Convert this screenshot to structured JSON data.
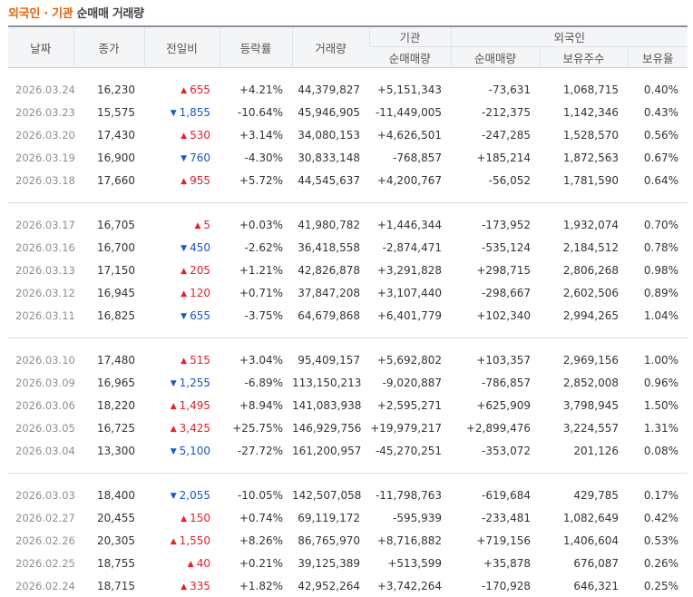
{
  "title": {
    "part1": "외국인 · 기관",
    "part2": "순매매 거래량"
  },
  "headers": {
    "date": "날짜",
    "close": "종가",
    "change": "전일비",
    "rate": "등락률",
    "volume": "거래량",
    "inst": "기관",
    "foreign": "외국인",
    "inst_net": "순매매량",
    "foreign_net": "순매매량",
    "foreign_shares": "보유주수",
    "foreign_ratio": "보유율"
  },
  "colors": {
    "up": "#e3212b",
    "down": "#1a56c6",
    "title_accent": "#e8630a"
  },
  "groups": [
    [
      {
        "date": "2026.03.24",
        "close": "16,230",
        "dir": "up",
        "change": "655",
        "rate": "+4.21%",
        "volume": "44,379,827",
        "inst": "+5,151,343",
        "foreign": "-73,631",
        "shares": "1,068,715",
        "ratio": "0.40%"
      },
      {
        "date": "2026.03.23",
        "close": "15,575",
        "dir": "down",
        "change": "1,855",
        "rate": "-10.64%",
        "volume": "45,946,905",
        "inst": "-11,449,005",
        "foreign": "-212,375",
        "shares": "1,142,346",
        "ratio": "0.43%"
      },
      {
        "date": "2026.03.20",
        "close": "17,430",
        "dir": "up",
        "change": "530",
        "rate": "+3.14%",
        "volume": "34,080,153",
        "inst": "+4,626,501",
        "foreign": "-247,285",
        "shares": "1,528,570",
        "ratio": "0.56%"
      },
      {
        "date": "2026.03.19",
        "close": "16,900",
        "dir": "down",
        "change": "760",
        "rate": "-4.30%",
        "volume": "30,833,148",
        "inst": "-768,857",
        "foreign": "+185,214",
        "shares": "1,872,563",
        "ratio": "0.67%"
      },
      {
        "date": "2026.03.18",
        "close": "17,660",
        "dir": "up",
        "change": "955",
        "rate": "+5.72%",
        "volume": "44,545,637",
        "inst": "+4,200,767",
        "foreign": "-56,052",
        "shares": "1,781,590",
        "ratio": "0.64%"
      }
    ],
    [
      {
        "date": "2026.03.17",
        "close": "16,705",
        "dir": "up",
        "change": "5",
        "rate": "+0.03%",
        "volume": "41,980,782",
        "inst": "+1,446,344",
        "foreign": "-173,952",
        "shares": "1,932,074",
        "ratio": "0.70%"
      },
      {
        "date": "2026.03.16",
        "close": "16,700",
        "dir": "down",
        "change": "450",
        "rate": "-2.62%",
        "volume": "36,418,558",
        "inst": "-2,874,471",
        "foreign": "-535,124",
        "shares": "2,184,512",
        "ratio": "0.78%"
      },
      {
        "date": "2026.03.13",
        "close": "17,150",
        "dir": "up",
        "change": "205",
        "rate": "+1.21%",
        "volume": "42,826,878",
        "inst": "+3,291,828",
        "foreign": "+298,715",
        "shares": "2,806,268",
        "ratio": "0.98%"
      },
      {
        "date": "2026.03.12",
        "close": "16,945",
        "dir": "up",
        "change": "120",
        "rate": "+0.71%",
        "volume": "37,847,208",
        "inst": "+3,107,440",
        "foreign": "-298,667",
        "shares": "2,602,506",
        "ratio": "0.89%"
      },
      {
        "date": "2026.03.11",
        "close": "16,825",
        "dir": "down",
        "change": "655",
        "rate": "-3.75%",
        "volume": "64,679,868",
        "inst": "+6,401,779",
        "foreign": "+102,340",
        "shares": "2,994,265",
        "ratio": "1.04%"
      }
    ],
    [
      {
        "date": "2026.03.10",
        "close": "17,480",
        "dir": "up",
        "change": "515",
        "rate": "+3.04%",
        "volume": "95,409,157",
        "inst": "+5,692,802",
        "foreign": "+103,357",
        "shares": "2,969,156",
        "ratio": "1.00%"
      },
      {
        "date": "2026.03.09",
        "close": "16,965",
        "dir": "down",
        "change": "1,255",
        "rate": "-6.89%",
        "volume": "113,150,213",
        "inst": "-9,020,887",
        "foreign": "-786,857",
        "shares": "2,852,008",
        "ratio": "0.96%"
      },
      {
        "date": "2026.03.06",
        "close": "18,220",
        "dir": "up",
        "change": "1,495",
        "rate": "+8.94%",
        "volume": "141,083,938",
        "inst": "+2,595,271",
        "foreign": "+625,909",
        "shares": "3,798,945",
        "ratio": "1.50%"
      },
      {
        "date": "2026.03.05",
        "close": "16,725",
        "dir": "up",
        "change": "3,425",
        "rate": "+25.75%",
        "volume": "146,929,756",
        "inst": "+19,979,217",
        "foreign": "+2,899,476",
        "shares": "3,224,557",
        "ratio": "1.31%"
      },
      {
        "date": "2026.03.04",
        "close": "13,300",
        "dir": "down",
        "change": "5,100",
        "rate": "-27.72%",
        "volume": "161,200,957",
        "inst": "-45,270,251",
        "foreign": "-353,072",
        "shares": "201,126",
        "ratio": "0.08%"
      }
    ],
    [
      {
        "date": "2026.03.03",
        "close": "18,400",
        "dir": "down",
        "change": "2,055",
        "rate": "-10.05%",
        "volume": "142,507,058",
        "inst": "-11,798,763",
        "foreign": "-619,684",
        "shares": "429,785",
        "ratio": "0.17%"
      },
      {
        "date": "2026.02.27",
        "close": "20,455",
        "dir": "up",
        "change": "150",
        "rate": "+0.74%",
        "volume": "69,119,172",
        "inst": "-595,939",
        "foreign": "-233,481",
        "shares": "1,082,649",
        "ratio": "0.42%"
      },
      {
        "date": "2026.02.26",
        "close": "20,305",
        "dir": "up",
        "change": "1,550",
        "rate": "+8.26%",
        "volume": "86,765,970",
        "inst": "+8,716,882",
        "foreign": "+719,156",
        "shares": "1,406,604",
        "ratio": "0.53%"
      },
      {
        "date": "2026.02.25",
        "close": "18,755",
        "dir": "up",
        "change": "40",
        "rate": "+0.21%",
        "volume": "39,125,389",
        "inst": "+513,599",
        "foreign": "+35,878",
        "shares": "676,087",
        "ratio": "0.26%"
      },
      {
        "date": "2026.02.24",
        "close": "18,715",
        "dir": "up",
        "change": "335",
        "rate": "+1.82%",
        "volume": "42,952,264",
        "inst": "+3,742,264",
        "foreign": "-170,928",
        "shares": "646,321",
        "ratio": "0.25%"
      }
    ]
  ]
}
